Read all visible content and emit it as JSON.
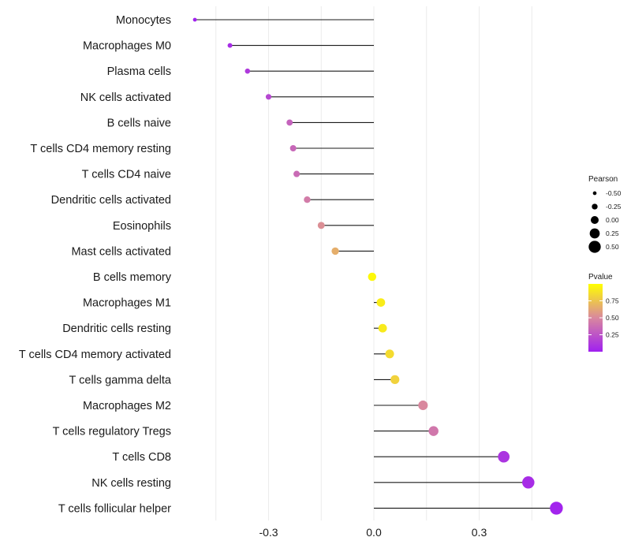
{
  "chart_data": {
    "type": "lollipop",
    "title": "",
    "xlabel": "",
    "ylabel": "",
    "xlim": [
      -0.6,
      0.6
    ],
    "xticks": [
      -0.3,
      0.0,
      0.3
    ],
    "xtick_labels": [
      "-0.3",
      "0.0",
      "0.3"
    ],
    "grid": true,
    "categories": [
      "Monocytes",
      "Macrophages M0",
      "Plasma cells",
      "NK cells activated",
      "B cells naive",
      "T cells CD4 memory resting",
      "T cells CD4 naive",
      "Dendritic cells activated",
      "Eosinophils",
      "Mast cells activated",
      "B cells memory",
      "Macrophages M1",
      "Dendritic cells resting",
      "T cells CD4 memory activated",
      "T cells gamma delta",
      "Macrophages M2",
      "T cells regulatory  Tregs",
      "T cells CD8",
      "NK cells resting",
      "T cells follicular helper"
    ],
    "pearson": [
      -0.51,
      -0.41,
      -0.36,
      -0.3,
      -0.24,
      -0.23,
      -0.22,
      -0.19,
      -0.15,
      -0.11,
      -0.005,
      0.02,
      0.025,
      0.045,
      0.06,
      0.14,
      0.17,
      0.37,
      0.44,
      0.52
    ],
    "pvalue": [
      0.01,
      0.06,
      0.12,
      0.19,
      0.32,
      0.34,
      0.36,
      0.44,
      0.53,
      0.66,
      0.97,
      0.92,
      0.91,
      0.85,
      0.81,
      0.5,
      0.42,
      0.1,
      0.06,
      0.02
    ],
    "legend_size": {
      "title": "Pearson",
      "values": [
        -0.5,
        -0.25,
        0.0,
        0.25,
        0.5
      ],
      "labels": [
        "-0.50",
        "-0.25",
        "0.00",
        "0.25",
        "0.50"
      ],
      "position": "right"
    },
    "legend_color": {
      "title": "Pvalue",
      "breaks": [
        0.25,
        0.5,
        0.75
      ],
      "labels": [
        "0.25",
        "0.50",
        "0.75"
      ],
      "colors": [
        "#a020f0",
        "#d9889e",
        "#ffff00"
      ],
      "position": "right"
    }
  }
}
